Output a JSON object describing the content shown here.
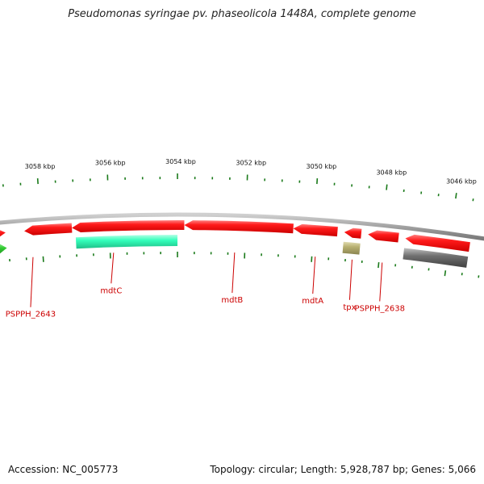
{
  "title": "Pseudomonas syringae pv. phaseolicola 1448A, complete genome",
  "footer": {
    "accession": "Accession: NC_005773",
    "stats": "Topology: circular; Length: 5,928,787 bp; Genes: 5,066"
  },
  "colors": {
    "gene_red": "#ff1a1a",
    "gene_green": "#33cc33",
    "gene_cyan": "#33ffbb",
    "gene_olive": "#b8b070",
    "gene_gray": "#707070",
    "backbone": "#8c8c8c",
    "tick": "#1a7a1a",
    "label_red": "#cc0000"
  },
  "chart_data": {
    "type": "genome-map",
    "scale_ticks_kbp": [
      3058,
      3056,
      3054,
      3052,
      3050,
      3048,
      3046
    ],
    "scale_label_suffix": " kbp",
    "genes": [
      {
        "name": "",
        "start_kbp": 3059.6,
        "end_kbp": 3059.05,
        "track": "outer",
        "color": "red",
        "direction": "right"
      },
      {
        "name": "",
        "start_kbp": 3059.6,
        "end_kbp": 3059.05,
        "track": "inner",
        "color": "green",
        "direction": "right"
      },
      {
        "name": "PSPPH_2643",
        "start_kbp": 3058.5,
        "end_kbp": 3057.1,
        "track": "outer",
        "color": "red",
        "direction": "left"
      },
      {
        "name": "mdtC",
        "start_kbp": 3057.1,
        "end_kbp": 3053.8,
        "track": "outer",
        "color": "red",
        "direction": "left"
      },
      {
        "name": "",
        "start_kbp": 3057.0,
        "end_kbp": 3054.0,
        "track": "inner",
        "color": "cyan",
        "direction": "none"
      },
      {
        "name": "mdtB",
        "start_kbp": 3053.8,
        "end_kbp": 3050.6,
        "track": "outer",
        "color": "red",
        "direction": "left"
      },
      {
        "name": "mdtA",
        "start_kbp": 3050.6,
        "end_kbp": 3049.3,
        "track": "outer",
        "color": "red",
        "direction": "left"
      },
      {
        "name": "tpx",
        "start_kbp": 3049.1,
        "end_kbp": 3048.6,
        "track": "outer",
        "color": "red",
        "direction": "left"
      },
      {
        "name": "",
        "start_kbp": 3049.1,
        "end_kbp": 3048.6,
        "track": "inner",
        "color": "olive",
        "direction": "none"
      },
      {
        "name": "PSPPH_2638",
        "start_kbp": 3048.4,
        "end_kbp": 3047.5,
        "track": "outer",
        "color": "red",
        "direction": "left"
      },
      {
        "name": "",
        "start_kbp": 3047.3,
        "end_kbp": 3045.4,
        "track": "outer",
        "color": "red",
        "direction": "left"
      },
      {
        "name": "",
        "start_kbp": 3047.3,
        "end_kbp": 3045.4,
        "track": "inner",
        "color": "gray",
        "direction": "none"
      }
    ],
    "labels": [
      {
        "name": "PSPPH_2643",
        "at_kbp": 3058.3
      },
      {
        "name": "mdtC",
        "at_kbp": 3055.9
      },
      {
        "name": "mdtB",
        "at_kbp": 3052.3
      },
      {
        "name": "mdtA",
        "at_kbp": 3049.9
      },
      {
        "name": "tpx",
        "at_kbp": 3048.8
      },
      {
        "name": "PSPPH_2638",
        "at_kbp": 3047.9
      }
    ]
  }
}
